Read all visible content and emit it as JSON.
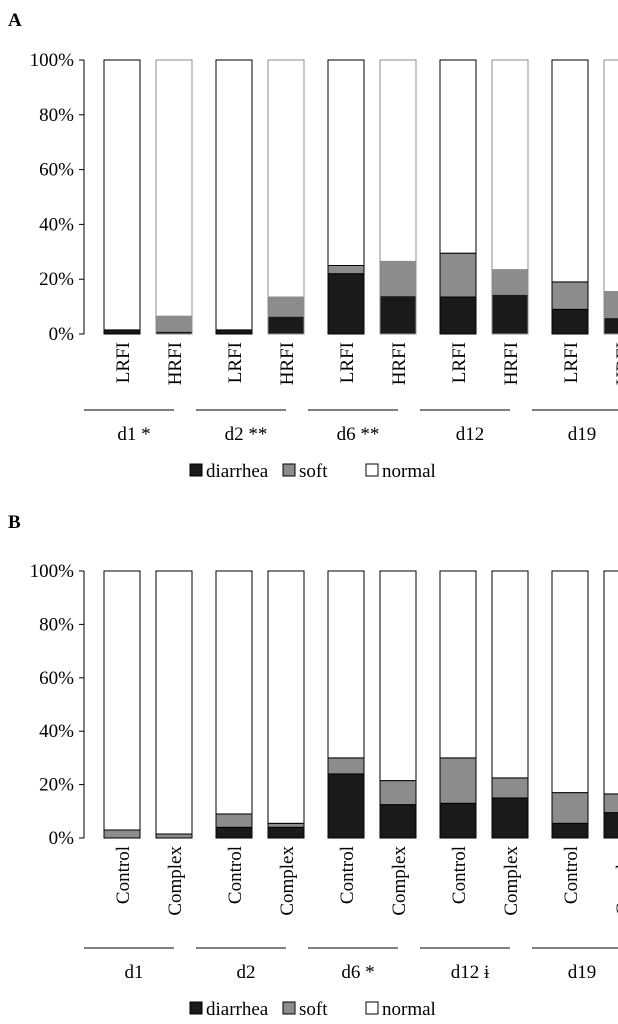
{
  "chart_data": [
    {
      "type": "bar",
      "stacked": true,
      "title": "A",
      "ylim": [
        0,
        100
      ],
      "yticks": [
        "0%",
        "20%",
        "40%",
        "60%",
        "80%",
        "100%"
      ],
      "categories": [
        "LRFI",
        "HRFI",
        "LRFI",
        "HRFI",
        "LRFI",
        "HRFI",
        "LRFI",
        "HRFI",
        "LRFI",
        "HRFI"
      ],
      "groups": [
        "d1 *",
        "d2 **",
        "d6 **",
        "d12",
        "d19"
      ],
      "series": [
        {
          "name": "diarrhea",
          "color": "#1a1a1a",
          "values": [
            1.5,
            1,
            1.5,
            6.5,
            22,
            14,
            13.5,
            14.5,
            9,
            6
          ]
        },
        {
          "name": "soft",
          "color": "#8c8c8c",
          "values": [
            0,
            5.5,
            0,
            7,
            3,
            12.5,
            16,
            9,
            10,
            9.5
          ]
        },
        {
          "name": "normal",
          "color": "#ffffff",
          "values": [
            98.5,
            93.5,
            98.5,
            86.5,
            75,
            73.5,
            70.5,
            76.5,
            81,
            84.5
          ]
        }
      ],
      "legend": {
        "position": "bottom",
        "labels": [
          "diarrhea",
          "soft",
          "normal"
        ]
      }
    },
    {
      "type": "bar",
      "stacked": true,
      "title": "B",
      "ylim": [
        0,
        100
      ],
      "yticks": [
        "0%",
        "20%",
        "40%",
        "60%",
        "80%",
        "100%"
      ],
      "categories": [
        "Control",
        "Complex",
        "Control",
        "Complex",
        "Control",
        "Complex",
        "Control",
        "Complex",
        "Control",
        "Complex"
      ],
      "groups": [
        "d1",
        "d2",
        "d6 *",
        "d12 ɨ",
        "d19"
      ],
      "series": [
        {
          "name": "diarrhea",
          "color": "#1a1a1a",
          "values": [
            0,
            0,
            4,
            4,
            24,
            12.5,
            13,
            15,
            5.5,
            9.5
          ]
        },
        {
          "name": "soft",
          "color": "#8c8c8c",
          "values": [
            3,
            1.5,
            5,
            1.5,
            6,
            9,
            17,
            7.5,
            11.5,
            7
          ]
        },
        {
          "name": "normal",
          "color": "#ffffff",
          "values": [
            97,
            98.5,
            91,
            94.5,
            70,
            78.5,
            70,
            77.5,
            83,
            83.5
          ]
        }
      ],
      "legend": {
        "position": "bottom",
        "labels": [
          "diarrhea",
          "soft",
          "normal"
        ]
      }
    }
  ]
}
